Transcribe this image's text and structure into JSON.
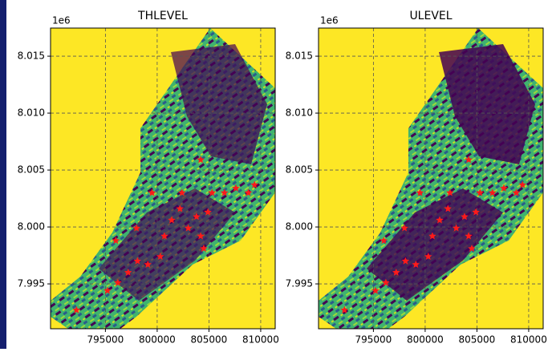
{
  "chart_data": [
    {
      "type": "scatter",
      "title": "THLEVEL",
      "y_offset_label": "1e6",
      "xlim": [
        789700,
        811400
      ],
      "ylim": [
        7991060,
        8017470
      ],
      "xticks": [
        795000,
        800000,
        805000,
        810000
      ],
      "yticks": [
        {
          "value": 7995000,
          "label": "7.995"
        },
        {
          "value": 8000000,
          "label": "8.000"
        },
        {
          "value": 8005000,
          "label": "8.005"
        },
        {
          "value": 8010000,
          "label": "8.010"
        },
        {
          "value": 8015000,
          "label": "8.015"
        }
      ],
      "grid": true,
      "color": "#ff1a1a",
      "x": [
        792200,
        795200,
        796200,
        797200,
        798100,
        796000,
        799100,
        800300,
        800700,
        801400,
        802200,
        803000,
        803800,
        804200,
        804900,
        805300,
        806500,
        807600,
        808800,
        809400,
        804200,
        802400,
        799500,
        798000,
        804500
      ],
      "y": [
        7992700,
        7994400,
        7995100,
        7996000,
        7997000,
        7998800,
        7996700,
        7997400,
        7999200,
        8000600,
        8001600,
        7999900,
        8000900,
        7999200,
        8001300,
        8003000,
        8003000,
        8003400,
        8003000,
        8003700,
        8005900,
        8003000,
        8003000,
        7999900,
        7998100
      ]
    },
    {
      "type": "scatter",
      "title": "ULEVEL",
      "y_offset_label": "1e6",
      "xlim": [
        789700,
        811400
      ],
      "ylim": [
        7991060,
        8017470
      ],
      "xticks": [
        795000,
        800000,
        805000,
        810000
      ],
      "yticks": [
        {
          "value": 7995000,
          "label": "7.995"
        },
        {
          "value": 8000000,
          "label": "8.000"
        },
        {
          "value": 8005000,
          "label": "8.005"
        },
        {
          "value": 8010000,
          "label": "8.010"
        },
        {
          "value": 8015000,
          "label": "8.015"
        }
      ],
      "grid": true,
      "color": "#ff1a1a",
      "x": [
        792200,
        795200,
        796200,
        797200,
        798100,
        796000,
        799100,
        800300,
        800700,
        801400,
        802200,
        803000,
        803800,
        804200,
        804900,
        805300,
        806500,
        807600,
        808800,
        809400,
        804200,
        802400,
        799500,
        798000,
        804500
      ],
      "y": [
        7992700,
        7994400,
        7995100,
        7996000,
        7997000,
        7998800,
        7996700,
        7997400,
        7999200,
        8000600,
        8001600,
        7999900,
        8000900,
        7999200,
        8001300,
        8003000,
        8003000,
        8003400,
        8003000,
        8003700,
        8005900,
        8003000,
        8003000,
        7999900,
        7998100
      ]
    }
  ]
}
